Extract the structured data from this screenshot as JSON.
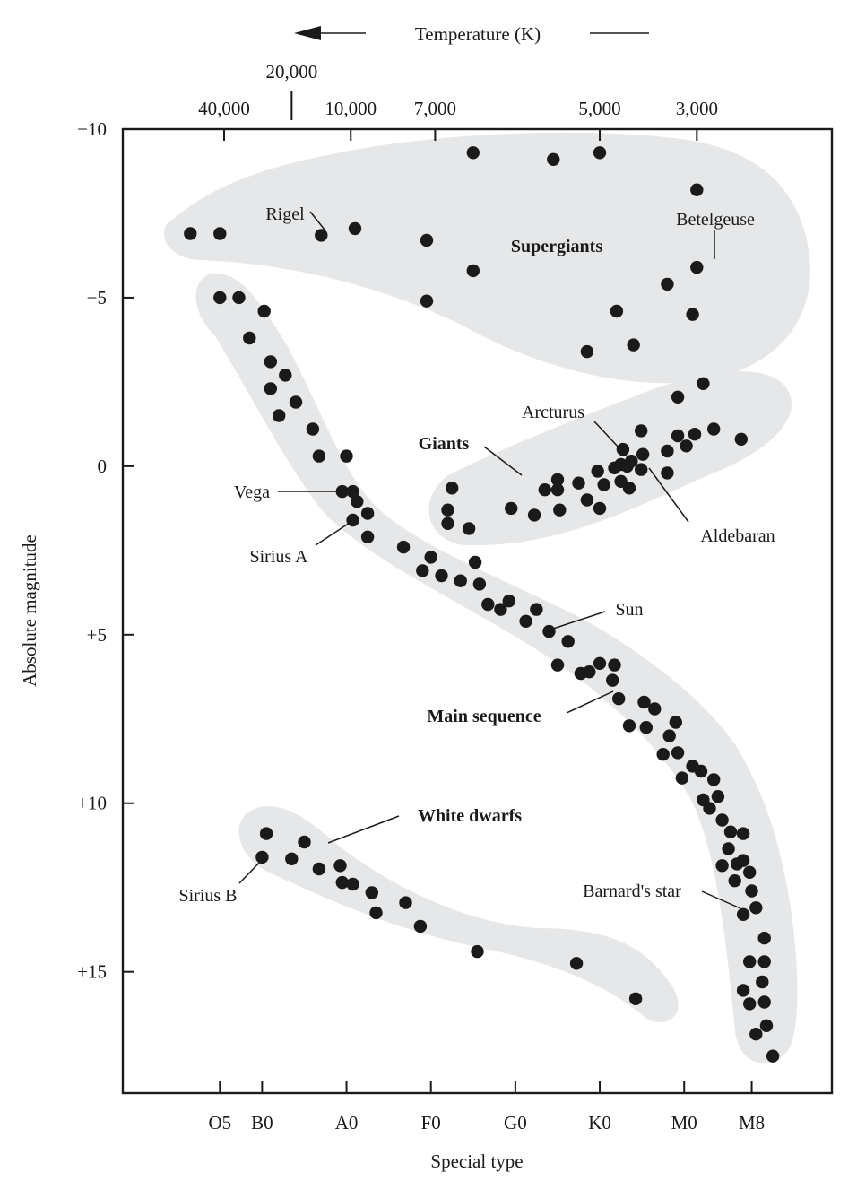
{
  "chart_data": {
    "type": "scatter",
    "title": "",
    "xlabel": "Special type",
    "ylabel": "Absolute magnitude",
    "top_axis_title": "Temperature (K)",
    "grid": false,
    "colors": {
      "points": "#1a1a1a",
      "regions": "#e6e7e8",
      "frame": "#1a1a1a"
    },
    "x_categories": [
      "O5",
      "B0",
      "A0",
      "F0",
      "G0",
      "K0",
      "M0",
      "M8"
    ],
    "x_tick_index": [
      0.0,
      1.0,
      3.0,
      5.0,
      7.0,
      9.0,
      11.0,
      12.6
    ],
    "xlim": [
      -2.3,
      14.5
    ],
    "ylim": [
      -10,
      18.6
    ],
    "y_inverted": true,
    "y_ticks": [
      {
        "value": -10,
        "label": "−10"
      },
      {
        "value": -5,
        "label": "−5"
      },
      {
        "value": 0,
        "label": "0"
      },
      {
        "value": 5,
        "label": "+5"
      },
      {
        "value": 10,
        "label": "+10"
      },
      {
        "value": 15,
        "label": "+15"
      }
    ],
    "temperature_ticks": [
      {
        "label": "40,000",
        "x": 0.1
      },
      {
        "label": "20,000",
        "x": 1.7
      },
      {
        "label": "10,000",
        "x": 3.1
      },
      {
        "label": "7,000",
        "x": 5.1
      },
      {
        "label": "5,000",
        "x": 9.0
      },
      {
        "label": "3,000",
        "x": 11.3
      }
    ],
    "regions": [
      {
        "name": "Supergiants",
        "label": "Supergiants"
      },
      {
        "name": "Giants",
        "label": "Giants"
      },
      {
        "name": "Main sequence",
        "label": "Main sequence"
      },
      {
        "name": "White dwarfs",
        "label": "White dwarfs"
      }
    ],
    "named_stars": [
      {
        "label": "Rigel"
      },
      {
        "label": "Betelgeuse"
      },
      {
        "label": "Arcturus"
      },
      {
        "label": "Aldebaran"
      },
      {
        "label": "Vega"
      },
      {
        "label": "Sirius A"
      },
      {
        "label": "Sun"
      },
      {
        "label": "Barnard's star"
      },
      {
        "label": "Sirius B"
      }
    ],
    "series": [
      {
        "name": "Supergiants",
        "points": [
          [
            -0.7,
            -6.9
          ],
          [
            0.0,
            -6.9
          ],
          [
            2.4,
            -6.85
          ],
          [
            3.2,
            -7.05
          ],
          [
            4.9,
            -6.7
          ],
          [
            4.9,
            -4.9
          ],
          [
            6.0,
            -5.8
          ],
          [
            6.0,
            -9.3
          ],
          [
            7.9,
            -9.1
          ],
          [
            9.0,
            -9.3
          ],
          [
            9.4,
            -4.6
          ],
          [
            9.8,
            -3.6
          ],
          [
            10.6,
            -5.4
          ],
          [
            11.3,
            -8.2
          ],
          [
            11.3,
            -5.9
          ],
          [
            11.2,
            -4.5
          ],
          [
            8.7,
            -3.4
          ]
        ]
      },
      {
        "name": "Main sequence",
        "points": [
          [
            0.0,
            -5.0
          ],
          [
            0.45,
            -5.0
          ],
          [
            1.05,
            -4.6
          ],
          [
            0.7,
            -3.8
          ],
          [
            1.2,
            -3.1
          ],
          [
            1.55,
            -2.7
          ],
          [
            1.2,
            -2.3
          ],
          [
            1.8,
            -1.9
          ],
          [
            1.4,
            -1.5
          ],
          [
            2.2,
            -1.1
          ],
          [
            2.35,
            -0.3
          ],
          [
            3.0,
            -0.3
          ],
          [
            2.9,
            0.75
          ],
          [
            3.15,
            0.75
          ],
          [
            3.25,
            1.05
          ],
          [
            3.5,
            1.4
          ],
          [
            3.15,
            1.6
          ],
          [
            3.5,
            2.1
          ],
          [
            4.35,
            2.4
          ],
          [
            5.0,
            2.7
          ],
          [
            4.8,
            3.1
          ],
          [
            5.25,
            3.25
          ],
          [
            5.7,
            3.4
          ],
          [
            6.05,
            2.85
          ],
          [
            6.15,
            3.5
          ],
          [
            6.35,
            4.1
          ],
          [
            6.65,
            4.25
          ],
          [
            6.85,
            4.0
          ],
          [
            7.25,
            4.6
          ],
          [
            7.5,
            4.25
          ],
          [
            7.8,
            4.9
          ],
          [
            8.25,
            5.2
          ],
          [
            8.0,
            5.9
          ],
          [
            8.55,
            6.15
          ],
          [
            8.75,
            6.1
          ],
          [
            9.0,
            5.85
          ],
          [
            9.35,
            5.9
          ],
          [
            9.3,
            6.35
          ],
          [
            9.45,
            6.9
          ],
          [
            9.7,
            7.7
          ],
          [
            10.05,
            7.0
          ],
          [
            10.1,
            7.75
          ],
          [
            10.3,
            7.2
          ],
          [
            10.5,
            8.55
          ],
          [
            10.65,
            8.0
          ],
          [
            10.8,
            7.6
          ],
          [
            10.85,
            8.5
          ],
          [
            10.95,
            9.25
          ],
          [
            11.2,
            8.9
          ],
          [
            11.4,
            9.05
          ],
          [
            11.45,
            9.9
          ],
          [
            11.6,
            10.15
          ],
          [
            11.7,
            9.3
          ],
          [
            11.8,
            9.8
          ],
          [
            11.9,
            10.5
          ],
          [
            12.1,
            10.85
          ],
          [
            12.05,
            11.35
          ],
          [
            11.9,
            11.85
          ],
          [
            12.25,
            11.8
          ],
          [
            12.4,
            11.7
          ],
          [
            12.2,
            12.3
          ],
          [
            12.4,
            10.9
          ],
          [
            12.55,
            12.05
          ],
          [
            12.6,
            12.6
          ],
          [
            12.7,
            13.1
          ],
          [
            12.4,
            13.3
          ],
          [
            12.9,
            14.0
          ],
          [
            12.55,
            14.7
          ],
          [
            12.9,
            14.7
          ],
          [
            12.85,
            15.3
          ],
          [
            12.4,
            15.55
          ],
          [
            12.9,
            15.9
          ],
          [
            12.55,
            15.95
          ],
          [
            12.95,
            16.6
          ],
          [
            12.7,
            16.85
          ],
          [
            13.1,
            17.5
          ]
        ]
      },
      {
        "name": "Giants",
        "points": [
          [
            5.5,
            0.65
          ],
          [
            5.4,
            1.3
          ],
          [
            5.4,
            1.7
          ],
          [
            5.9,
            1.85
          ],
          [
            6.9,
            1.25
          ],
          [
            7.45,
            1.45
          ],
          [
            7.7,
            0.7
          ],
          [
            8.0,
            0.4
          ],
          [
            8.0,
            0.7
          ],
          [
            8.05,
            1.3
          ],
          [
            8.5,
            0.5
          ],
          [
            8.7,
            1.0
          ],
          [
            9.0,
            1.25
          ],
          [
            8.95,
            0.15
          ],
          [
            9.1,
            0.55
          ],
          [
            9.35,
            0.05
          ],
          [
            9.5,
            -0.05
          ],
          [
            9.5,
            0.45
          ],
          [
            9.55,
            -0.5
          ],
          [
            9.65,
            0.0
          ],
          [
            9.7,
            0.65
          ],
          [
            9.75,
            -0.15
          ],
          [
            9.98,
            -1.05
          ],
          [
            9.98,
            0.1
          ],
          [
            10.02,
            -0.35
          ],
          [
            10.6,
            -0.45
          ],
          [
            10.6,
            0.2
          ],
          [
            10.85,
            -2.05
          ],
          [
            10.85,
            -0.9
          ],
          [
            11.05,
            -0.6
          ],
          [
            11.25,
            -0.95
          ],
          [
            11.45,
            -2.45
          ],
          [
            11.7,
            -1.1
          ],
          [
            12.35,
            -0.8
          ]
        ]
      },
      {
        "name": "White dwarfs",
        "points": [
          [
            1.1,
            10.9
          ],
          [
            1.0,
            11.6
          ],
          [
            1.7,
            11.65
          ],
          [
            2.0,
            11.15
          ],
          [
            2.35,
            11.95
          ],
          [
            2.85,
            11.85
          ],
          [
            2.9,
            12.35
          ],
          [
            3.15,
            12.4
          ],
          [
            3.6,
            12.65
          ],
          [
            3.7,
            13.25
          ],
          [
            4.4,
            12.95
          ],
          [
            4.75,
            13.65
          ],
          [
            6.1,
            14.4
          ],
          [
            8.45,
            14.75
          ],
          [
            9.85,
            15.8
          ]
        ]
      }
    ]
  }
}
